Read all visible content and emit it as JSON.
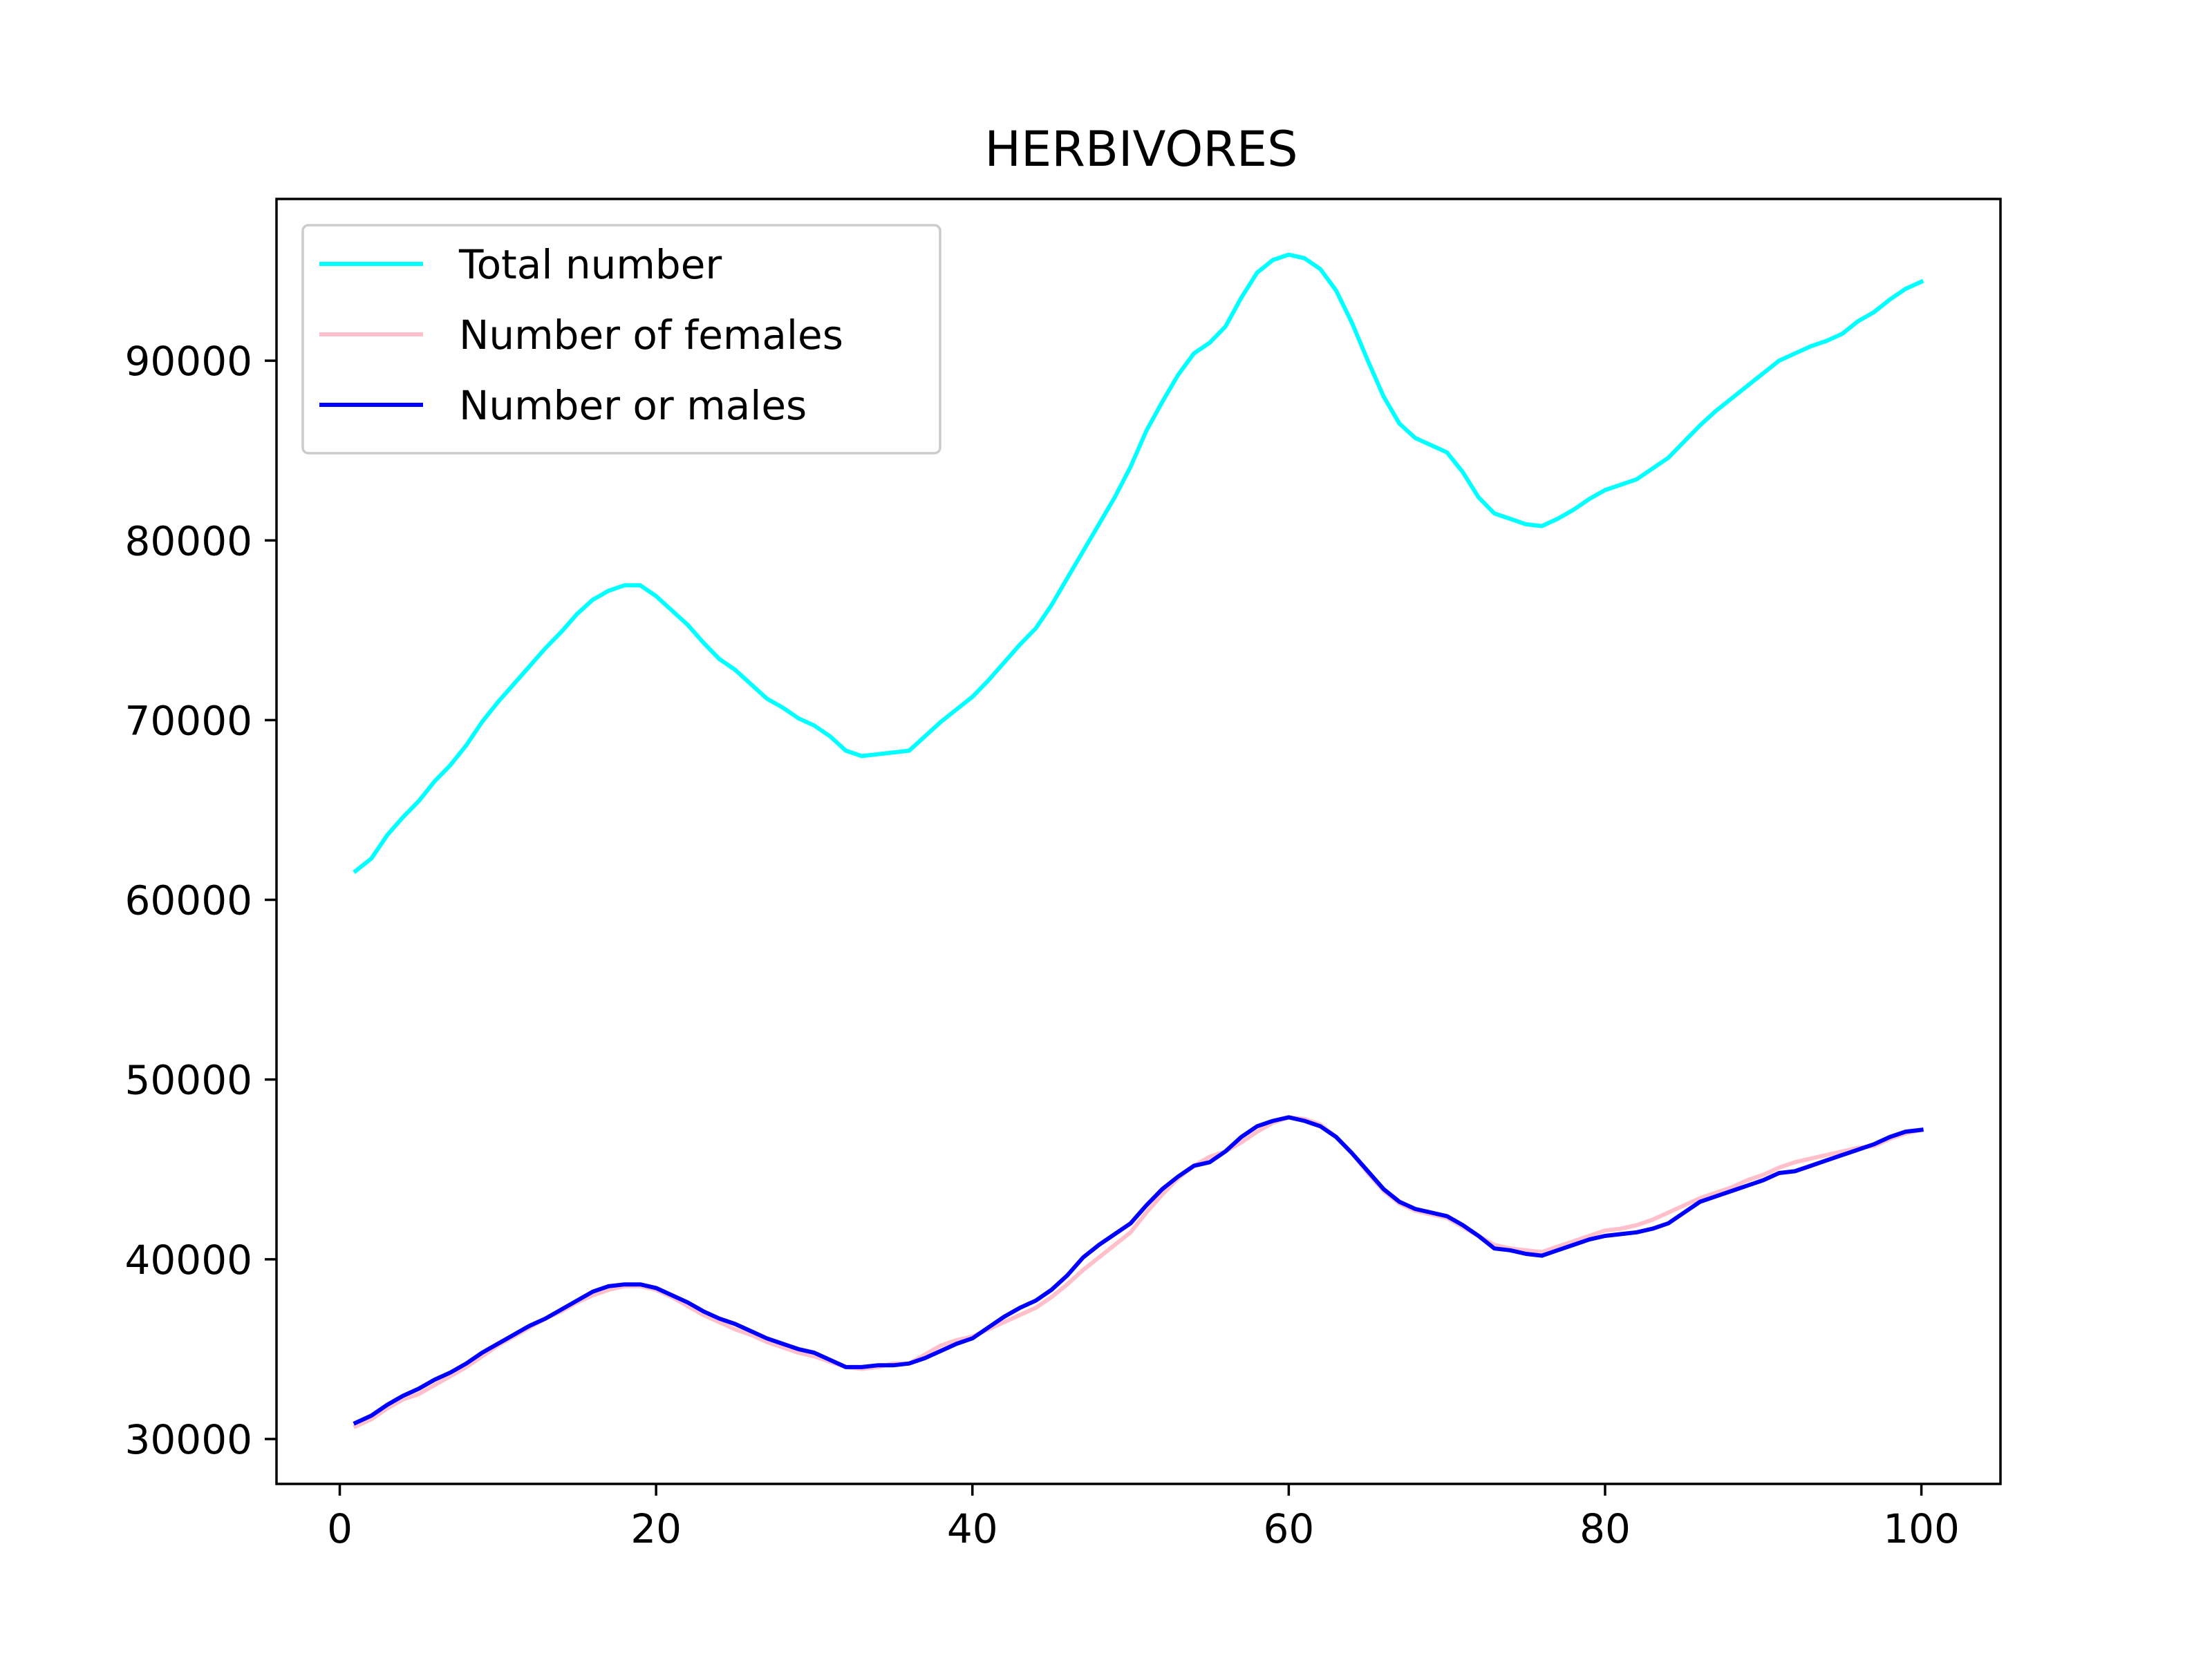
{
  "chart_data": {
    "type": "line",
    "title": "HERBIVORES",
    "xlabel": "",
    "ylabel": "",
    "xlim": [
      -4,
      105
    ],
    "ylim": [
      27500,
      99000
    ],
    "x_ticks": [
      0,
      20,
      40,
      60,
      80,
      100
    ],
    "y_ticks": [
      30000,
      40000,
      50000,
      60000,
      70000,
      80000,
      90000
    ],
    "grid": false,
    "legend_position": "upper-left",
    "x": [
      1,
      2,
      3,
      4,
      5,
      6,
      7,
      8,
      9,
      10,
      11,
      12,
      13,
      14,
      15,
      16,
      17,
      18,
      19,
      20,
      21,
      22,
      23,
      24,
      25,
      26,
      27,
      28,
      29,
      30,
      31,
      32,
      33,
      34,
      35,
      36,
      37,
      38,
      39,
      40,
      41,
      42,
      43,
      44,
      45,
      46,
      47,
      48,
      49,
      50,
      51,
      52,
      53,
      54,
      55,
      56,
      57,
      58,
      59,
      60,
      61,
      62,
      63,
      64,
      65,
      66,
      67,
      68,
      69,
      70,
      71,
      72,
      73,
      74,
      75,
      76,
      77,
      78,
      79,
      80,
      81,
      82,
      83,
      84,
      85,
      86,
      87,
      88,
      89,
      90,
      91,
      92,
      93,
      94,
      95,
      96,
      97,
      98,
      99,
      100
    ],
    "series": [
      {
        "name": "Total number",
        "color": "#00ffff",
        "values": [
          61600,
          62300,
          63600,
          64600,
          65500,
          66600,
          67500,
          68600,
          69900,
          71000,
          72000,
          73000,
          74000,
          74900,
          75900,
          76700,
          77200,
          77500,
          77500,
          76900,
          76100,
          75300,
          74300,
          73400,
          72800,
          72000,
          71200,
          70700,
          70100,
          69700,
          69100,
          68300,
          68000,
          68100,
          68200,
          68300,
          69100,
          69900,
          70600,
          71300,
          72200,
          73200,
          74200,
          75100,
          76400,
          77900,
          79400,
          80900,
          82400,
          84100,
          86100,
          87700,
          89200,
          90400,
          91000,
          91900,
          93500,
          94900,
          95600,
          95900,
          95700,
          95100,
          93900,
          92100,
          90000,
          88000,
          86500,
          85700,
          85300,
          84900,
          83800,
          82400,
          81500,
          81200,
          80900,
          80800,
          81200,
          81700,
          82300,
          82800,
          83100,
          83400,
          84000,
          84600,
          85500,
          86400,
          87200,
          87900,
          88600,
          89300,
          90000,
          90400,
          90800,
          91100,
          91500,
          92200,
          92700,
          93400,
          94000,
          94400
        ]
      },
      {
        "name": "Number of females",
        "color": "#ffc0cb",
        "values": [
          30700,
          31100,
          31700,
          32200,
          32500,
          33000,
          33500,
          34000,
          34600,
          35200,
          35700,
          36200,
          36700,
          37100,
          37600,
          38000,
          38300,
          38500,
          38500,
          38300,
          37900,
          37400,
          36900,
          36500,
          36100,
          35800,
          35400,
          35100,
          34800,
          34600,
          34300,
          34000,
          33900,
          34000,
          34200,
          34200,
          34700,
          35200,
          35500,
          35700,
          36100,
          36500,
          36900,
          37300,
          37900,
          38600,
          39400,
          40100,
          40800,
          41500,
          42600,
          43600,
          44500,
          45200,
          45700,
          46000,
          46500,
          47100,
          47600,
          47900,
          47800,
          47500,
          46800,
          45900,
          44800,
          43800,
          43100,
          42700,
          42500,
          42300,
          41800,
          41300,
          40800,
          40600,
          40500,
          40400,
          40700,
          41000,
          41300,
          41600,
          41700,
          41900,
          42200,
          42600,
          43000,
          43400,
          43700,
          44000,
          44400,
          44700,
          45100,
          45400,
          45600,
          45800,
          46000,
          46200,
          46300,
          46700,
          47000,
          47200
        ]
      },
      {
        "name": "Number or males",
        "color": "#0000ff",
        "values": [
          30900,
          31300,
          31900,
          32400,
          32800,
          33300,
          33700,
          34200,
          34800,
          35300,
          35800,
          36300,
          36700,
          37200,
          37700,
          38200,
          38500,
          38600,
          38600,
          38400,
          38000,
          37600,
          37100,
          36700,
          36400,
          36000,
          35600,
          35300,
          35000,
          34800,
          34400,
          34000,
          34000,
          34100,
          34100,
          34200,
          34500,
          34900,
          35300,
          35600,
          36200,
          36800,
          37300,
          37700,
          38300,
          39100,
          40100,
          40800,
          41400,
          42000,
          43000,
          43900,
          44600,
          45200,
          45400,
          46000,
          46800,
          47400,
          47700,
          47900,
          47700,
          47400,
          46800,
          45900,
          44900,
          43900,
          43200,
          42800,
          42600,
          42400,
          41900,
          41300,
          40600,
          40500,
          40300,
          40200,
          40500,
          40800,
          41100,
          41300,
          41400,
          41500,
          41700,
          42000,
          42600,
          43200,
          43500,
          43800,
          44100,
          44400,
          44800,
          44900,
          45200,
          45500,
          45800,
          46100,
          46400,
          46800,
          47100,
          47200
        ]
      }
    ]
  }
}
